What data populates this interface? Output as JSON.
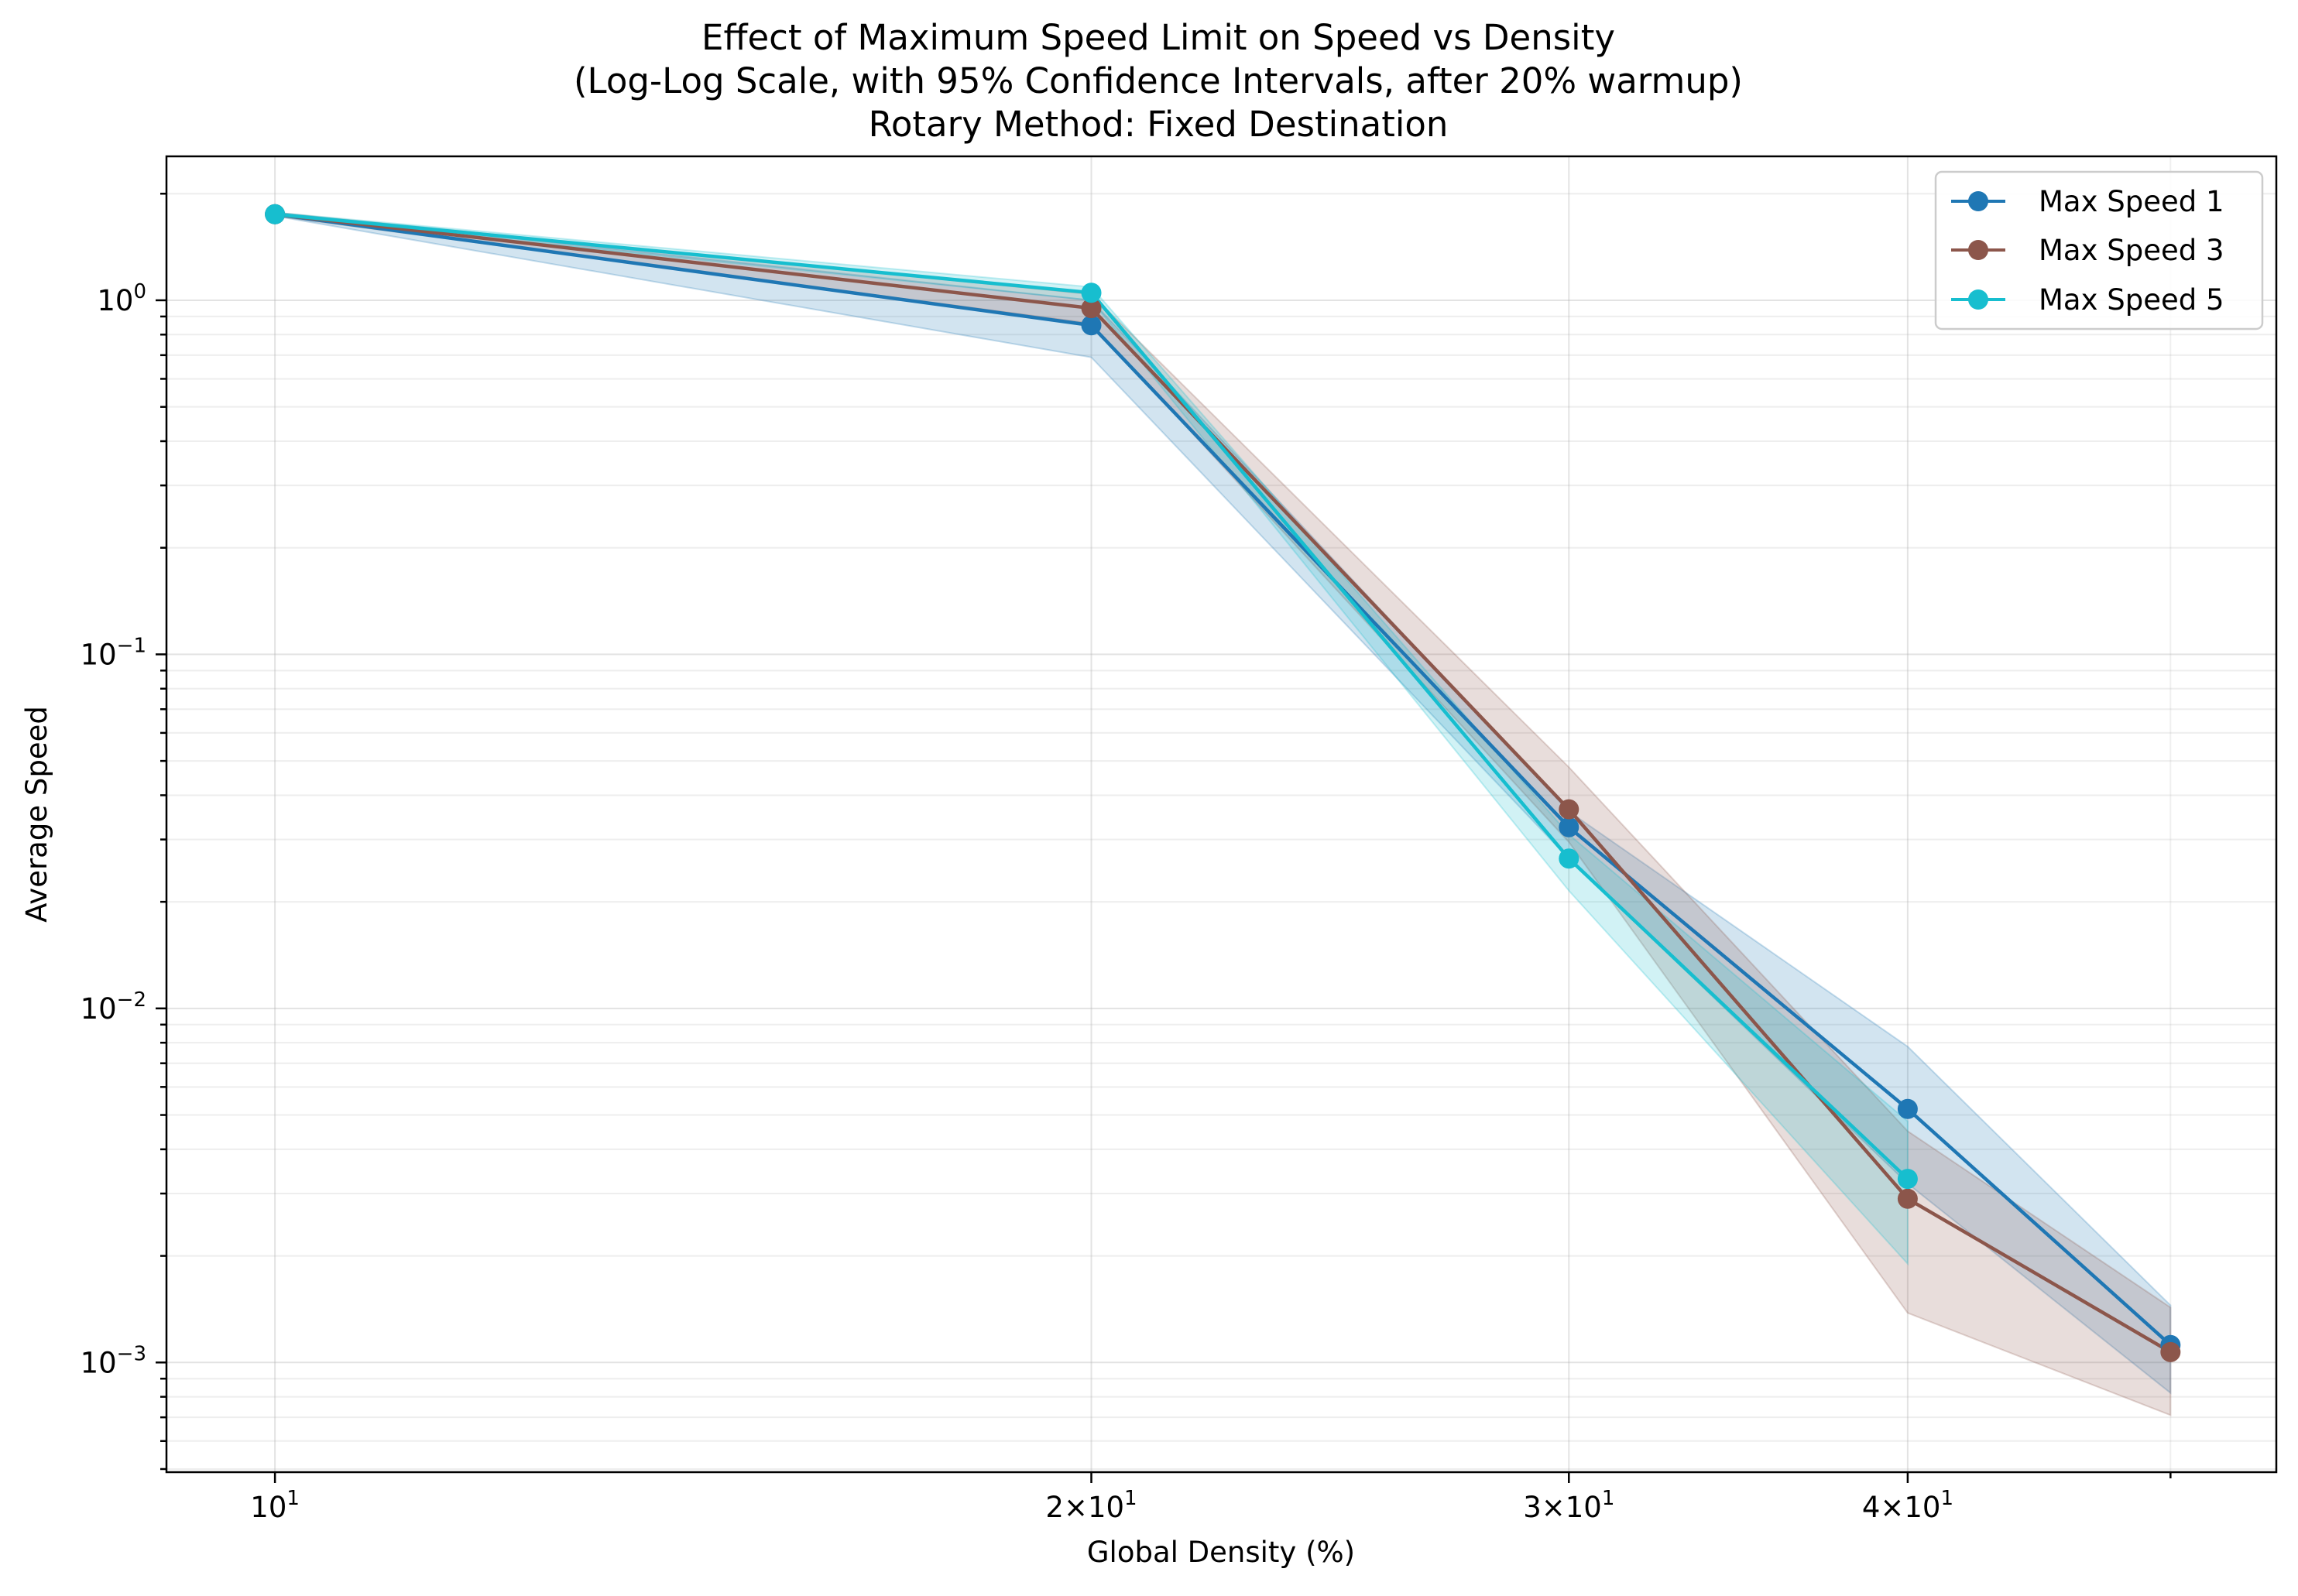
{
  "chart_data": {
    "type": "line",
    "title_lines": [
      "Effect of Maximum Speed Limit on Speed vs Density",
      "(Log-Log Scale, with 95% Confidence Intervals, after 20% warmup)",
      "Rotary Method: Fixed Destination"
    ],
    "xlabel": "Global Density (%)",
    "ylabel": "Average Speed",
    "xscale": "log",
    "yscale": "log",
    "xlim": [
      9.12,
      54.7
    ],
    "ylim": [
      0.00049,
      2.55
    ],
    "x": [
      10,
      20,
      30,
      40,
      50
    ],
    "grid": true,
    "legend_position": "top-right",
    "x_ticks": [
      {
        "value": 10,
        "base": "10",
        "exp": "1"
      },
      {
        "value": 20,
        "base": "2×10",
        "exp": "1"
      },
      {
        "value": 30,
        "base": "3×10",
        "exp": "1"
      },
      {
        "value": 40,
        "base": "4×10",
        "exp": "1"
      }
    ],
    "y_ticks": [
      {
        "value": 1,
        "base": "10",
        "exp": "0"
      },
      {
        "value": 0.1,
        "base": "10",
        "exp": "−1"
      },
      {
        "value": 0.01,
        "base": "10",
        "exp": "−2"
      },
      {
        "value": 0.001,
        "base": "10",
        "exp": "−3"
      }
    ],
    "series": [
      {
        "name": "Max Speed 1",
        "color": "#1f77b4",
        "values": [
          1.75,
          0.85,
          0.0325,
          0.0052,
          0.00112
        ],
        "ci_lower": [
          1.73,
          0.69,
          0.0265,
          0.0032,
          0.00082
        ],
        "ci_upper": [
          1.77,
          1.0,
          0.036,
          0.0078,
          0.00145
        ]
      },
      {
        "name": "Max Speed 3",
        "color": "#8c564b",
        "values": [
          1.75,
          0.95,
          0.0365,
          0.0029,
          0.00107
        ],
        "ci_lower": [
          1.73,
          0.86,
          0.0295,
          0.00138,
          0.00071
        ],
        "ci_upper": [
          1.77,
          1.04,
          0.048,
          0.0045,
          0.00143
        ]
      },
      {
        "name": "Max Speed 5",
        "color": "#17becf",
        "values": [
          1.75,
          1.05,
          0.0265,
          0.0033,
          0.0
        ],
        "ci_lower": [
          1.73,
          1.0,
          0.0215,
          0.0019,
          0.0
        ],
        "ci_upper": [
          1.77,
          1.09,
          0.031,
          0.0048,
          0.0
        ]
      }
    ]
  }
}
